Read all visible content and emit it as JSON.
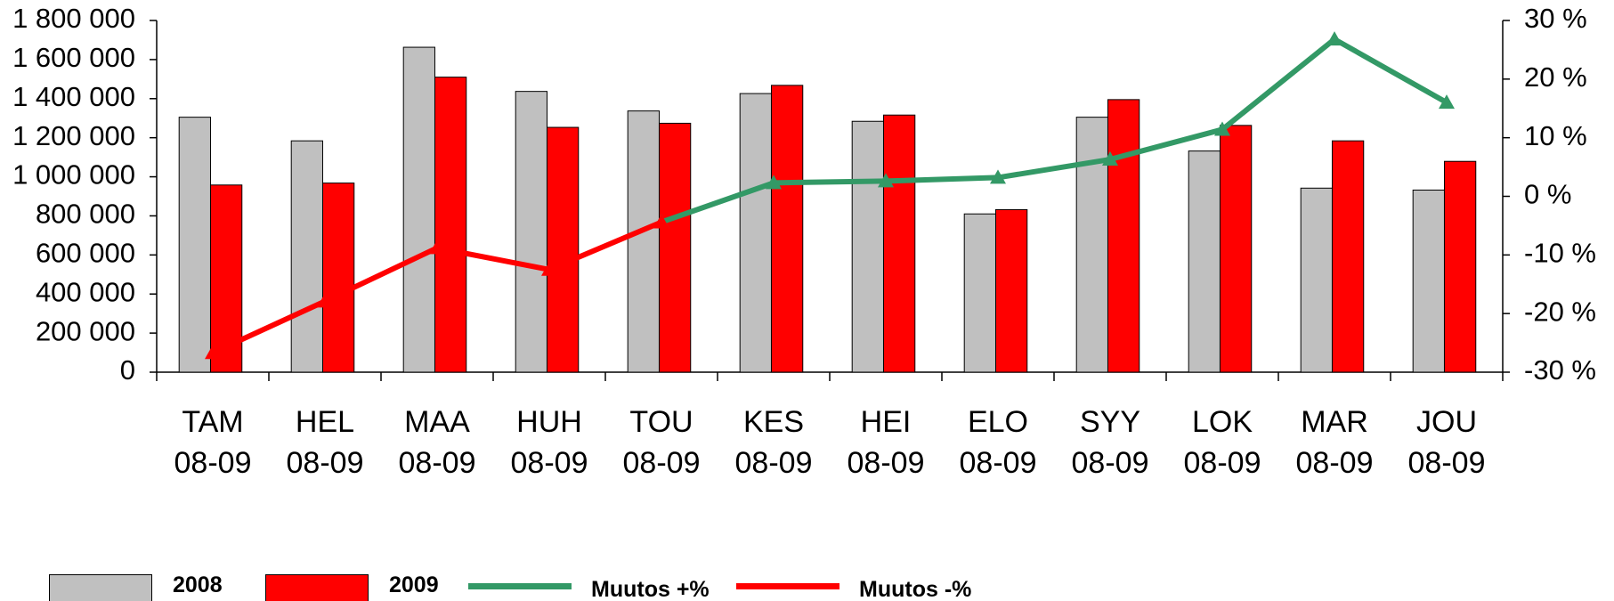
{
  "chart_data": {
    "type": "bar",
    "categories": [
      "TAM 08-09",
      "HEL 08-09",
      "MAA 08-09",
      "HUH 08-09",
      "TOU 08-09",
      "KES 08-09",
      "HEI 08-09",
      "ELO 08-09",
      "SYY 08-09",
      "LOK 08-09",
      "MAR 08-09",
      "JOU 08-09"
    ],
    "series": [
      {
        "name": "2008",
        "type": "bar",
        "color": "#c0c0c0",
        "values": [
          1305000,
          1184000,
          1663000,
          1437000,
          1337000,
          1426000,
          1284000,
          810000,
          1305000,
          1132000,
          942000,
          932000
        ]
      },
      {
        "name": "2009",
        "type": "bar",
        "color": "#ff0000",
        "values": [
          958000,
          968000,
          1510000,
          1253000,
          1274000,
          1468000,
          1316000,
          832000,
          1395000,
          1263000,
          1184000,
          1079000
        ]
      },
      {
        "name": "Muutos +%",
        "type": "line",
        "axis": "y2",
        "color": "#339966",
        "values": [
          null,
          null,
          null,
          null,
          -4.4,
          2.3,
          2.6,
          3.2,
          6.3,
          11.4,
          26.8,
          16.0
        ]
      },
      {
        "name": "Muutos -%",
        "type": "line",
        "axis": "y2",
        "color": "#ff0000",
        "values": [
          -26.7,
          -17.9,
          -8.8,
          -12.5,
          -4.4,
          null,
          null,
          null,
          null,
          null,
          null,
          null
        ]
      }
    ],
    "ylim": [
      0,
      1800000
    ],
    "yticks": [
      0,
      {
        "value": 200000,
        "label": "200 000"
      },
      {
        "value": 400000,
        "label": "400 000"
      },
      {
        "value": 600000,
        "label": "600 000"
      },
      {
        "value": 800000,
        "label": "800 000"
      },
      {
        "value": 1000000,
        "label": "1 000 000"
      },
      {
        "value": 1200000,
        "label": "1 200 000"
      },
      {
        "value": 1400000,
        "label": "1 400 000"
      },
      {
        "value": 1600000,
        "label": "1 600 000"
      },
      {
        "value": 1800000,
        "label": "1 800 000"
      }
    ],
    "y2lim": [
      -30,
      30
    ],
    "y2ticks": [
      {
        "value": -30,
        "label": "-30 %"
      },
      {
        "value": -20,
        "label": "-20 %"
      },
      {
        "value": -10,
        "label": "-10 %"
      },
      {
        "value": 0,
        "label": "0 %"
      },
      {
        "value": 10,
        "label": "10 %"
      },
      {
        "value": 20,
        "label": "20 %"
      },
      {
        "value": 30,
        "label": "30 %"
      }
    ],
    "grid": false,
    "legend": "bottom"
  }
}
